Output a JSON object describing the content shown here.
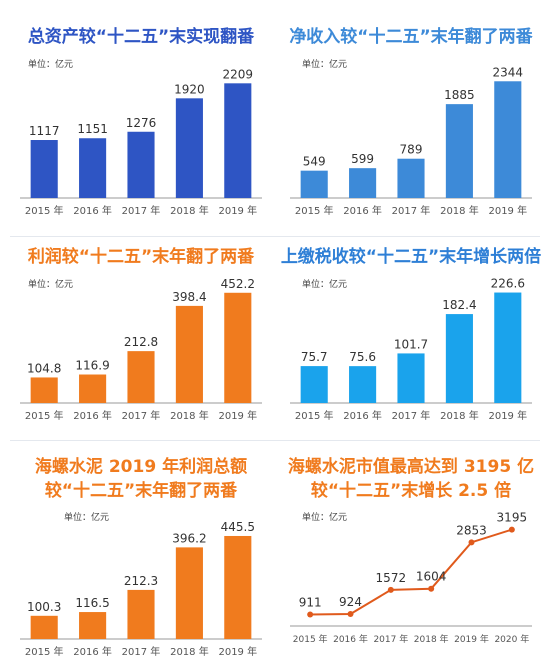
{
  "colors": {
    "blue": "#2e55c4",
    "mid_blue": "#3d8ad8",
    "light_blue": "#1aa3ec",
    "orange": "#f07b1e",
    "text_dark": "#333333",
    "axis": "#999999"
  },
  "chart_data": [
    {
      "type": "bar",
      "title": "总资产较“十二五”末实现翻番",
      "unit": "单位：亿元",
      "categories": [
        "2015 年",
        "2016 年",
        "2017 年",
        "2018 年",
        "2019 年"
      ],
      "values": [
        1117,
        1151,
        1276,
        1920,
        2209
      ],
      "value_labels": [
        "1117",
        "1151",
        "1276",
        "1920",
        "2209"
      ],
      "ylim": [
        0,
        2350
      ],
      "color": "#2e55c4",
      "title_color": "#2e55c4"
    },
    {
      "type": "bar",
      "title": "净收入较“十二五”末年翻了两番",
      "unit": "单位：亿元",
      "categories": [
        "2015 年",
        "2016 年",
        "2017 年",
        "2018 年",
        "2019 年"
      ],
      "values": [
        549,
        599,
        789,
        1885,
        2344
      ],
      "value_labels": [
        "549",
        "599",
        "789",
        "1885",
        "2344"
      ],
      "ylim": [
        0,
        2450
      ],
      "color": "#3d8ad8",
      "title_color": "#3d8ad8"
    },
    {
      "type": "bar",
      "title": "利润较“十二五”末年翻了两番",
      "unit": "单位：亿元",
      "categories": [
        "2015 年",
        "2016 年",
        "2017 年",
        "2018 年",
        "2019 年"
      ],
      "values": [
        104.8,
        116.9,
        212.8,
        398.4,
        452.2
      ],
      "value_labels": [
        "104.8",
        "116.9",
        "212.8",
        "398.4",
        "452.2"
      ],
      "ylim": [
        0,
        480
      ],
      "color": "#f07b1e",
      "title_color": "#f07b1e"
    },
    {
      "type": "bar",
      "title": "上缴税收较“十二五”末年增长两倍",
      "unit": "单位：亿元",
      "categories": [
        "2015 年",
        "2016 年",
        "2017 年",
        "2018 年",
        "2019 年"
      ],
      "values": [
        75.7,
        75.6,
        101.7,
        182.4,
        226.6
      ],
      "value_labels": [
        "75.7",
        "75.6",
        "101.7",
        "182.4",
        "226.6"
      ],
      "ylim": [
        0,
        240
      ],
      "color": "#1aa3ec",
      "title_color": "#2e7fd6"
    },
    {
      "type": "bar",
      "title": "海螺水泥 2019 年利润总额",
      "subtitle": "较“十二五”末年翻了两番",
      "unit": "单位：亿元",
      "categories": [
        "2015 年",
        "2016 年",
        "2017 年",
        "2018 年",
        "2019 年"
      ],
      "values": [
        100.3,
        116.5,
        212.3,
        396.2,
        445.5
      ],
      "value_labels": [
        "100.3",
        "116.5",
        "212.3",
        "396.2",
        "445.5"
      ],
      "ylim": [
        0,
        480
      ],
      "color": "#f07b1e",
      "title_color": "#f07b1e"
    },
    {
      "type": "line",
      "title": "海螺水泥市值最高达到 3195 亿",
      "subtitle": "较“十二五”末增长 2.5 倍",
      "unit": "单位：亿元",
      "categories": [
        "2015 年",
        "2016 年",
        "2017 年",
        "2018 年",
        "2019 年",
        "2020 年"
      ],
      "values": [
        911,
        924,
        1572,
        1604,
        2853,
        3195
      ],
      "value_labels": [
        "911",
        "924",
        "1572",
        "1604",
        "2853",
        "3195"
      ],
      "ylim": [
        600,
        3400
      ],
      "color": "#e05a1c",
      "title_color": "#f07b1e"
    }
  ]
}
